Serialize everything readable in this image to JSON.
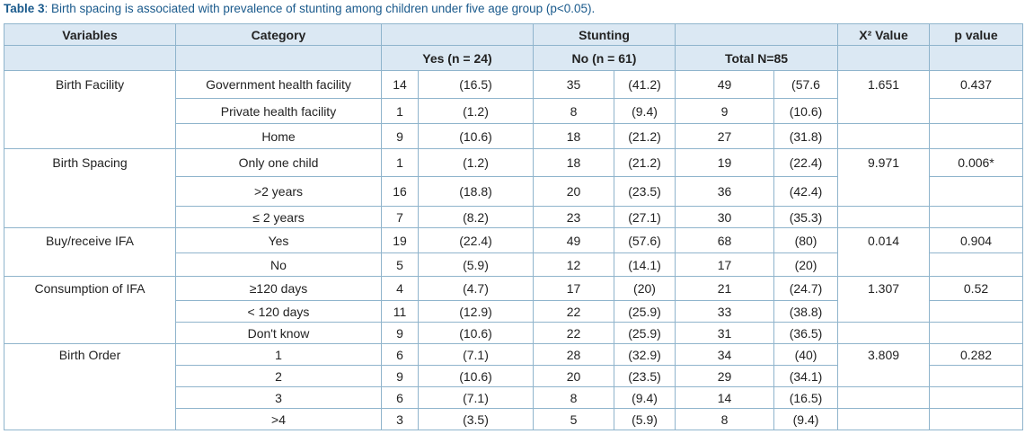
{
  "caption": {
    "label": "Table 3",
    "text": ": Birth spacing is associated with prevalence of stunting among children under five age group (p<0.05)."
  },
  "headers": {
    "variables": "Variables",
    "category": "Category",
    "stunting": "Stunting",
    "x2": "X² Value",
    "p": "p value",
    "yes": "Yes (n = 24)",
    "no": "No (n = 61)",
    "total": "Total N=85"
  },
  "rows": [
    {
      "variable": "Birth Facility",
      "category": "Government health facility",
      "yes_n": "14",
      "yes_pct": "(16.5)",
      "no_n": "35",
      "no_pct": "(41.2)",
      "total_n": "49",
      "total_pct": "(57.6",
      "x2": "1.651",
      "p": "0.437"
    },
    {
      "variable": "",
      "category": "Private health facility",
      "yes_n": "1",
      "yes_pct": "(1.2)",
      "no_n": "8",
      "no_pct": "(9.4)",
      "total_n": "9",
      "total_pct": "(10.6)",
      "x2": "",
      "p": ""
    },
    {
      "variable": "",
      "category": "Home",
      "yes_n": "9",
      "yes_pct": "(10.6)",
      "no_n": "18",
      "no_pct": "(21.2)",
      "total_n": "27",
      "total_pct": "(31.8)",
      "x2": "",
      "p": ""
    },
    {
      "variable": "Birth Spacing",
      "category": "Only one child",
      "yes_n": "1",
      "yes_pct": "(1.2)",
      "no_n": "18",
      "no_pct": "(21.2)",
      "total_n": "19",
      "total_pct": "(22.4)",
      "x2": "9.971",
      "p": "0.006*"
    },
    {
      "variable": "",
      "category": ">2 years",
      "yes_n": "16",
      "yes_pct": "(18.8)",
      "no_n": "20",
      "no_pct": "(23.5)",
      "total_n": "36",
      "total_pct": "(42.4)",
      "x2": "",
      "p": ""
    },
    {
      "variable": "",
      "category": "≤ 2 years",
      "yes_n": "7",
      "yes_pct": "(8.2)",
      "no_n": "23",
      "no_pct": "(27.1)",
      "total_n": "30",
      "total_pct": "(35.3)",
      "x2": "",
      "p": ""
    },
    {
      "variable": "Buy/receive IFA",
      "category": "Yes",
      "yes_n": "19",
      "yes_pct": "(22.4)",
      "no_n": "49",
      "no_pct": "(57.6)",
      "total_n": "68",
      "total_pct": "(80)",
      "x2": "0.014",
      "p": "0.904"
    },
    {
      "variable": "",
      "category": "No",
      "yes_n": "5",
      "yes_pct": "(5.9)",
      "no_n": "12",
      "no_pct": "(14.1)",
      "total_n": "17",
      "total_pct": "(20)",
      "x2": "",
      "p": ""
    },
    {
      "variable": "Consumption of IFA",
      "category": "≥120 days",
      "yes_n": "4",
      "yes_pct": "(4.7)",
      "no_n": "17",
      "no_pct": "(20)",
      "total_n": "21",
      "total_pct": "(24.7)",
      "x2": "1.307",
      "p": "0.52"
    },
    {
      "variable": "",
      "category": "< 120 days",
      "yes_n": "11",
      "yes_pct": "(12.9)",
      "no_n": "22",
      "no_pct": "(25.9)",
      "total_n": "33",
      "total_pct": "(38.8)",
      "x2": "",
      "p": ""
    },
    {
      "variable": "",
      "category": "Don't know",
      "yes_n": "9",
      "yes_pct": "(10.6)",
      "no_n": "22",
      "no_pct": "(25.9)",
      "total_n": "31",
      "total_pct": "(36.5)",
      "x2": "",
      "p": ""
    },
    {
      "variable": "Birth Order",
      "category": "1",
      "yes_n": "6",
      "yes_pct": "(7.1)",
      "no_n": "28",
      "no_pct": "(32.9)",
      "total_n": "34",
      "total_pct": "(40)",
      "x2": "3.809",
      "p": "0.282"
    },
    {
      "variable": "",
      "category": "2",
      "yes_n": "9",
      "yes_pct": "(10.6)",
      "no_n": "20",
      "no_pct": "(23.5)",
      "total_n": "29",
      "total_pct": "(34.1)",
      "x2": "",
      "p": ""
    },
    {
      "variable": "",
      "category": "3",
      "yes_n": "6",
      "yes_pct": "(7.1)",
      "no_n": "8",
      "no_pct": "(9.4)",
      "total_n": "14",
      "total_pct": "(16.5)",
      "x2": "",
      "p": ""
    },
    {
      "variable": "",
      "category": ">4",
      "yes_n": "3",
      "yes_pct": "(3.5)",
      "no_n": "5",
      "no_pct": "(5.9)",
      "total_n": "8",
      "total_pct": "(9.4)",
      "x2": "",
      "p": ""
    }
  ]
}
